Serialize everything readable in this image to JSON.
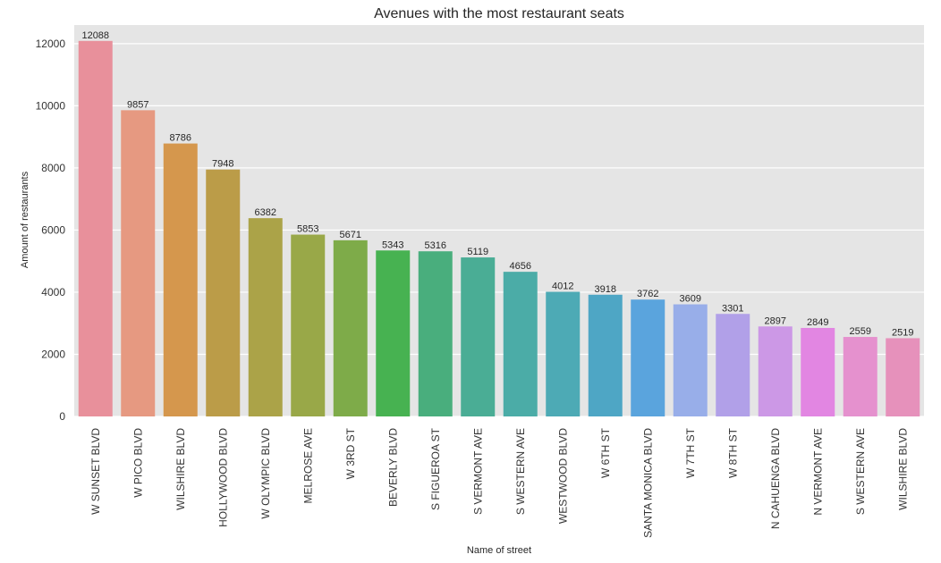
{
  "chart_data": {
    "type": "bar",
    "title": "Avenues with the most restaurant seats",
    "xlabel": "Name of street",
    "ylabel": "Amount of restaurants",
    "ylim": [
      0,
      12600
    ],
    "yticks": [
      0,
      2000,
      4000,
      6000,
      8000,
      10000,
      12000
    ],
    "grid": true,
    "background": "#e5e5e5",
    "categories": [
      "W SUNSET BLVD",
      "W PICO BLVD",
      "WILSHIRE BLVD",
      "HOLLYWOOD BLVD",
      "W OLYMPIC BLVD",
      "MELROSE AVE",
      "W 3RD ST",
      "BEVERLY BLVD",
      "S FIGUEROA ST",
      "S VERMONT AVE",
      "S WESTERN AVE",
      "WESTWOOD BLVD",
      "W 6TH ST",
      "SANTA MONICA BLVD",
      "W 7TH ST",
      "W 8TH ST",
      "N CAHUENGA BLVD",
      "N VERMONT AVE",
      "S WESTERN AVE",
      "WILSHIRE BLVD"
    ],
    "values": [
      12088,
      9857,
      8786,
      7948,
      6382,
      5853,
      5671,
      5343,
      5316,
      5119,
      4656,
      4012,
      3918,
      3762,
      3609,
      3301,
      2897,
      2849,
      2559,
      2519
    ],
    "colors": [
      "#e8909b",
      "#e69981",
      "#d5974d",
      "#bb9c48",
      "#aba348",
      "#99a848",
      "#7eab49",
      "#47b251",
      "#49ae7d",
      "#4aad95",
      "#4baca7",
      "#4daab5",
      "#4ea6c5",
      "#5aa4dd",
      "#98aee9",
      "#b1a0e8",
      "#cc98e6",
      "#e286e2",
      "#e591ce",
      "#e691bb"
    ]
  }
}
